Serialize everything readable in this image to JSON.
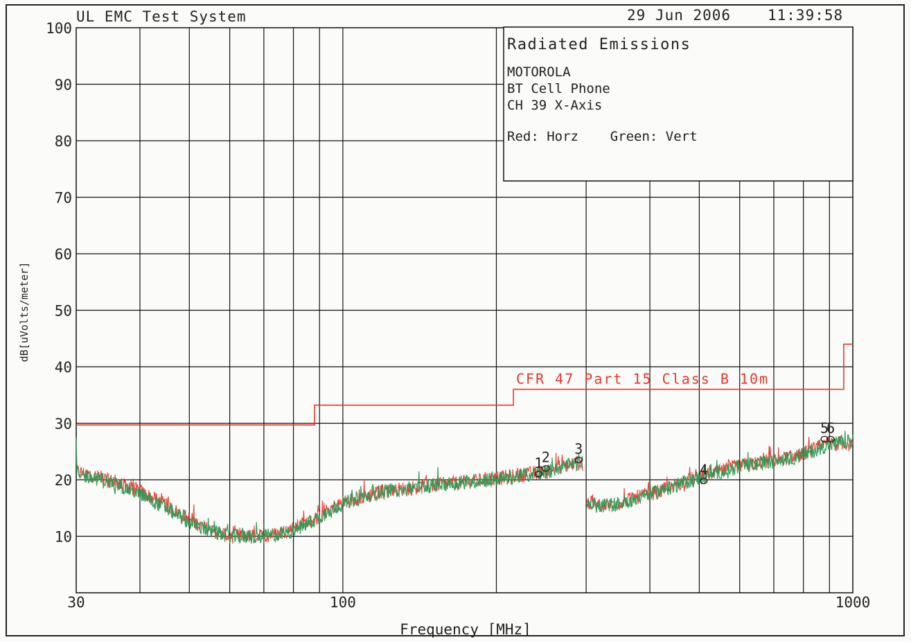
{
  "header": {
    "system": "UL EMC Test System",
    "date": "29 Jun 2006",
    "time": "11:39:58"
  },
  "info_box": {
    "title": "Radiated Emissions",
    "lines": [
      "MOTOROLA",
      "BT Cell Phone",
      "CH 39 X-Axis"
    ],
    "legend": "Red: Horz    Green: Vert"
  },
  "colors": {
    "horz": "#e8362b",
    "vert": "#2e9a56",
    "limit": "#e8362b",
    "grid": "#111111"
  },
  "chart_data": {
    "type": "line",
    "title": "",
    "xlabel": "Frequency [MHz]",
    "ylabel": "dB[uVolts/meter]",
    "x_scale": "log",
    "xlim": [
      30,
      1000
    ],
    "ylim": [
      0,
      100
    ],
    "x_ticks": [
      {
        "value": 30,
        "label": "30"
      },
      {
        "value": 100,
        "label": "100"
      },
      {
        "value": 1000,
        "label": "1000"
      }
    ],
    "y_ticks": [
      {
        "value": 10,
        "label": "10"
      },
      {
        "value": 20,
        "label": "20"
      },
      {
        "value": 30,
        "label": "30"
      },
      {
        "value": 40,
        "label": "40"
      },
      {
        "value": 50,
        "label": "50"
      },
      {
        "value": 60,
        "label": "60"
      },
      {
        "value": 70,
        "label": "70"
      },
      {
        "value": 80,
        "label": "80"
      },
      {
        "value": 90,
        "label": "90"
      },
      {
        "value": 100,
        "label": "100"
      }
    ],
    "grid": true,
    "limit_line": {
      "name": "CFR 47 Part 15  Class B 10m",
      "points": [
        [
          30,
          29.7
        ],
        [
          88,
          29.7
        ],
        [
          88,
          33.2
        ],
        [
          216,
          33.2
        ],
        [
          216,
          36.0
        ],
        [
          960,
          36.0
        ],
        [
          960,
          44.0
        ],
        [
          1000,
          44.0
        ]
      ]
    },
    "series": [
      {
        "name": "Horz",
        "color": "#e8362b",
        "points": [
          [
            30,
            21.5
          ],
          [
            33,
            20.5
          ],
          [
            36,
            19.5
          ],
          [
            40,
            18
          ],
          [
            45,
            15.5
          ],
          [
            50,
            13
          ],
          [
            55,
            11
          ],
          [
            60,
            10
          ],
          [
            65,
            10
          ],
          [
            70,
            10
          ],
          [
            75,
            10.5
          ],
          [
            80,
            11.5
          ],
          [
            88,
            13
          ],
          [
            95,
            15
          ],
          [
            100,
            16
          ],
          [
            110,
            17
          ],
          [
            120,
            18
          ],
          [
            135,
            18.5
          ],
          [
            150,
            19
          ],
          [
            170,
            19.5
          ],
          [
            190,
            20
          ],
          [
            210,
            20.5
          ],
          [
            230,
            21
          ],
          [
            250,
            21.5
          ],
          [
            270,
            22.5
          ],
          [
            295,
            23
          ],
          [
            300,
            16
          ],
          [
            320,
            15.5
          ],
          [
            350,
            16
          ],
          [
            380,
            17
          ],
          [
            420,
            18
          ],
          [
            460,
            19.5
          ],
          [
            500,
            20.5
          ],
          [
            550,
            21.5
          ],
          [
            600,
            22.5
          ],
          [
            650,
            23
          ],
          [
            700,
            23.5
          ],
          [
            760,
            24
          ],
          [
            820,
            25
          ],
          [
            870,
            26
          ],
          [
            920,
            26.5
          ],
          [
            970,
            26.5
          ],
          [
            1000,
            26
          ]
        ]
      },
      {
        "name": "Vert",
        "color": "#2e9a56",
        "points": [
          [
            30,
            21
          ],
          [
            33,
            20.2
          ],
          [
            36,
            19.2
          ],
          [
            40,
            17.5
          ],
          [
            45,
            15
          ],
          [
            50,
            12.5
          ],
          [
            55,
            10.8
          ],
          [
            60,
            10
          ],
          [
            65,
            9.8
          ],
          [
            70,
            10
          ],
          [
            75,
            10.3
          ],
          [
            80,
            11
          ],
          [
            88,
            12.8
          ],
          [
            95,
            14.8
          ],
          [
            100,
            15.8
          ],
          [
            110,
            17
          ],
          [
            120,
            18
          ],
          [
            135,
            18.5
          ],
          [
            150,
            19
          ],
          [
            170,
            19.5
          ],
          [
            190,
            20
          ],
          [
            210,
            20.3
          ],
          [
            230,
            20.8
          ],
          [
            250,
            21.3
          ],
          [
            270,
            22.3
          ],
          [
            295,
            23
          ],
          [
            300,
            15.8
          ],
          [
            320,
            15.3
          ],
          [
            350,
            15.8
          ],
          [
            380,
            16.8
          ],
          [
            420,
            18
          ],
          [
            460,
            19.3
          ],
          [
            500,
            20.3
          ],
          [
            550,
            21.3
          ],
          [
            600,
            22.3
          ],
          [
            650,
            22.8
          ],
          [
            700,
            23.3
          ],
          [
            760,
            23.8
          ],
          [
            820,
            24.8
          ],
          [
            870,
            25.8
          ],
          [
            920,
            26.3
          ],
          [
            970,
            26.8
          ],
          [
            1000,
            26.5
          ]
        ]
      }
    ],
    "markers": [
      {
        "label": "1",
        "x": 242,
        "y": 21.0
      },
      {
        "label": "2",
        "x": 250,
        "y": 22.0
      },
      {
        "label": "3",
        "x": 290,
        "y": 23.5
      },
      {
        "label": "4",
        "x": 510,
        "y": 19.8
      },
      {
        "label": "5",
        "x": 880,
        "y": 27.2
      },
      {
        "label": "6",
        "x": 905,
        "y": 27.2
      }
    ]
  }
}
